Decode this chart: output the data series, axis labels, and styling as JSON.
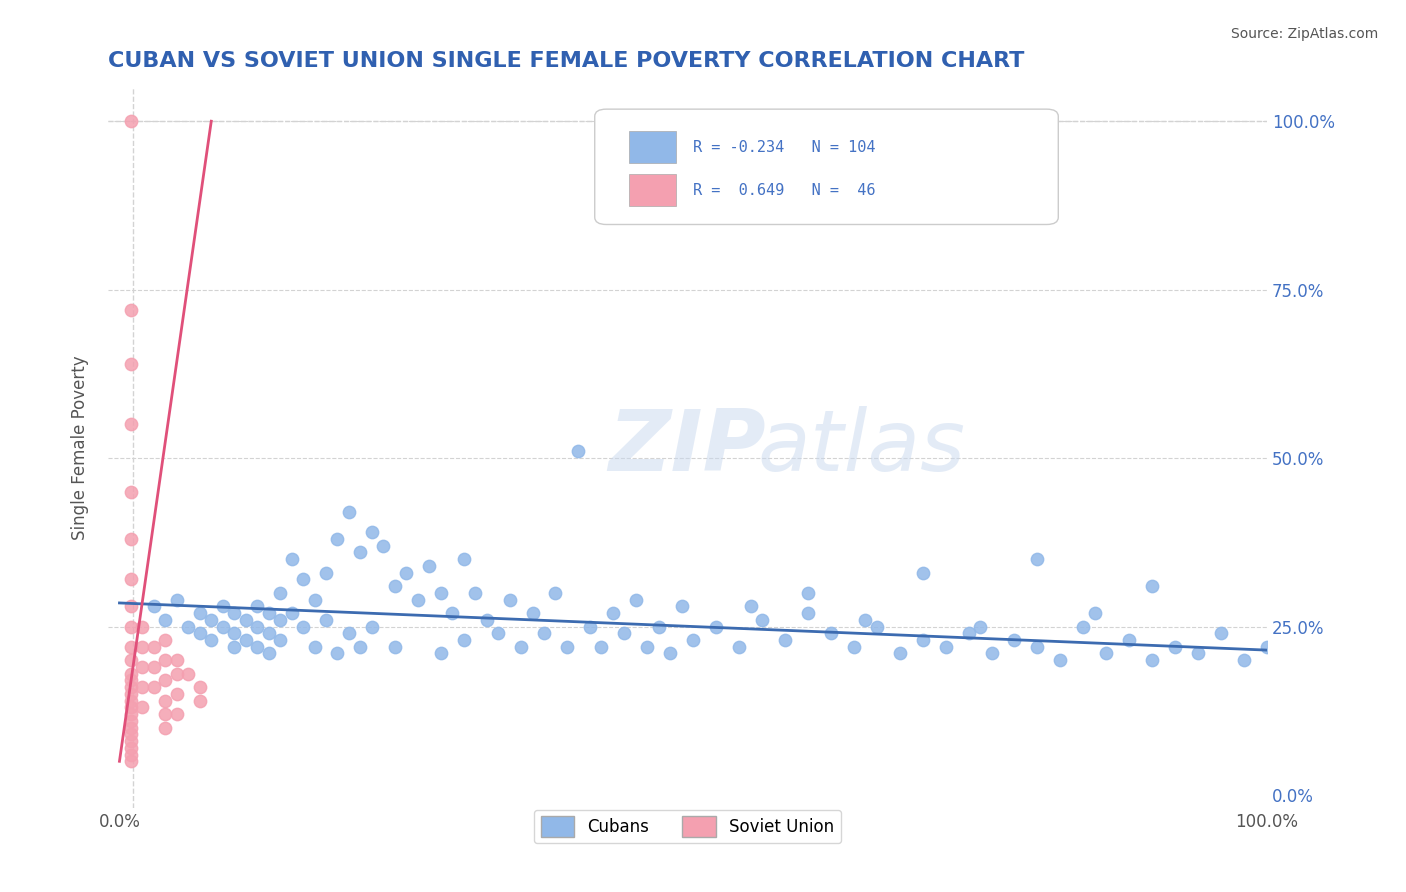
{
  "title": "CUBAN VS SOVIET UNION SINGLE FEMALE POVERTY CORRELATION CHART",
  "source": "Source: ZipAtlas.com",
  "ylabel": "Single Female Poverty",
  "xlabel": "",
  "xlim": [
    0.0,
    1.0
  ],
  "ylim": [
    0.0,
    1.05
  ],
  "xtick_labels": [
    "0.0%",
    "100.0%"
  ],
  "ytick_labels": [
    "0.0%",
    "25.0%",
    "50.0%",
    "75.0%",
    "100.0%"
  ],
  "ytick_positions": [
    0.0,
    0.25,
    0.5,
    0.75,
    1.0
  ],
  "blue_R": "-0.234",
  "blue_N": "104",
  "pink_R": "0.649",
  "pink_N": "46",
  "blue_color": "#91b8e8",
  "pink_color": "#f4a0b0",
  "blue_line_color": "#3c6bb0",
  "pink_line_color": "#e0507a",
  "watermark": "ZIPatlas",
  "title_color": "#3060b0",
  "legend_text_color": "#4472c4",
  "background_color": "#ffffff",
  "blue_scatter_x": [
    0.03,
    0.04,
    0.05,
    0.06,
    0.07,
    0.07,
    0.08,
    0.08,
    0.09,
    0.09,
    0.1,
    0.1,
    0.1,
    0.11,
    0.11,
    0.12,
    0.12,
    0.12,
    0.13,
    0.13,
    0.13,
    0.14,
    0.14,
    0.14,
    0.15,
    0.15,
    0.16,
    0.16,
    0.17,
    0.17,
    0.18,
    0.18,
    0.19,
    0.19,
    0.2,
    0.2,
    0.21,
    0.21,
    0.22,
    0.22,
    0.23,
    0.24,
    0.24,
    0.25,
    0.26,
    0.27,
    0.28,
    0.28,
    0.29,
    0.3,
    0.3,
    0.31,
    0.32,
    0.33,
    0.34,
    0.35,
    0.36,
    0.37,
    0.38,
    0.39,
    0.4,
    0.41,
    0.42,
    0.43,
    0.44,
    0.45,
    0.46,
    0.47,
    0.48,
    0.49,
    0.5,
    0.52,
    0.54,
    0.56,
    0.58,
    0.6,
    0.62,
    0.64,
    0.66,
    0.68,
    0.7,
    0.72,
    0.74,
    0.76,
    0.78,
    0.8,
    0.82,
    0.84,
    0.86,
    0.88,
    0.9,
    0.92,
    0.94,
    0.96,
    0.98,
    1.0,
    0.55,
    0.6,
    0.65,
    0.7,
    0.75,
    0.8,
    0.85,
    0.9
  ],
  "blue_scatter_y": [
    0.28,
    0.26,
    0.29,
    0.25,
    0.27,
    0.24,
    0.26,
    0.23,
    0.28,
    0.25,
    0.27,
    0.24,
    0.22,
    0.26,
    0.23,
    0.28,
    0.25,
    0.22,
    0.27,
    0.24,
    0.21,
    0.3,
    0.26,
    0.23,
    0.35,
    0.27,
    0.32,
    0.25,
    0.29,
    0.22,
    0.33,
    0.26,
    0.38,
    0.21,
    0.42,
    0.24,
    0.36,
    0.22,
    0.39,
    0.25,
    0.37,
    0.31,
    0.22,
    0.33,
    0.29,
    0.34,
    0.3,
    0.21,
    0.27,
    0.35,
    0.23,
    0.3,
    0.26,
    0.24,
    0.29,
    0.22,
    0.27,
    0.24,
    0.3,
    0.22,
    0.51,
    0.25,
    0.22,
    0.27,
    0.24,
    0.29,
    0.22,
    0.25,
    0.21,
    0.28,
    0.23,
    0.25,
    0.22,
    0.26,
    0.23,
    0.27,
    0.24,
    0.22,
    0.25,
    0.21,
    0.23,
    0.22,
    0.24,
    0.21,
    0.23,
    0.22,
    0.2,
    0.25,
    0.21,
    0.23,
    0.2,
    0.22,
    0.21,
    0.24,
    0.2,
    0.22,
    0.28,
    0.3,
    0.26,
    0.33,
    0.25,
    0.35,
    0.27,
    0.31
  ],
  "pink_scatter_x": [
    0.01,
    0.01,
    0.01,
    0.01,
    0.01,
    0.01,
    0.01,
    0.01,
    0.01,
    0.01,
    0.01,
    0.01,
    0.01,
    0.01,
    0.01,
    0.01,
    0.01,
    0.01,
    0.01,
    0.01,
    0.01,
    0.01,
    0.01,
    0.01,
    0.01,
    0.02,
    0.02,
    0.02,
    0.02,
    0.02,
    0.03,
    0.03,
    0.03,
    0.04,
    0.04,
    0.04,
    0.04,
    0.04,
    0.04,
    0.05,
    0.05,
    0.05,
    0.05,
    0.06,
    0.07,
    0.07
  ],
  "pink_scatter_y": [
    1.0,
    0.72,
    0.64,
    0.55,
    0.45,
    0.38,
    0.32,
    0.28,
    0.25,
    0.22,
    0.2,
    0.18,
    0.17,
    0.16,
    0.15,
    0.14,
    0.13,
    0.12,
    0.11,
    0.1,
    0.09,
    0.08,
    0.07,
    0.06,
    0.05,
    0.25,
    0.22,
    0.19,
    0.16,
    0.13,
    0.22,
    0.19,
    0.16,
    0.23,
    0.2,
    0.17,
    0.14,
    0.12,
    0.1,
    0.2,
    0.18,
    0.15,
    0.12,
    0.18,
    0.16,
    0.14
  ]
}
